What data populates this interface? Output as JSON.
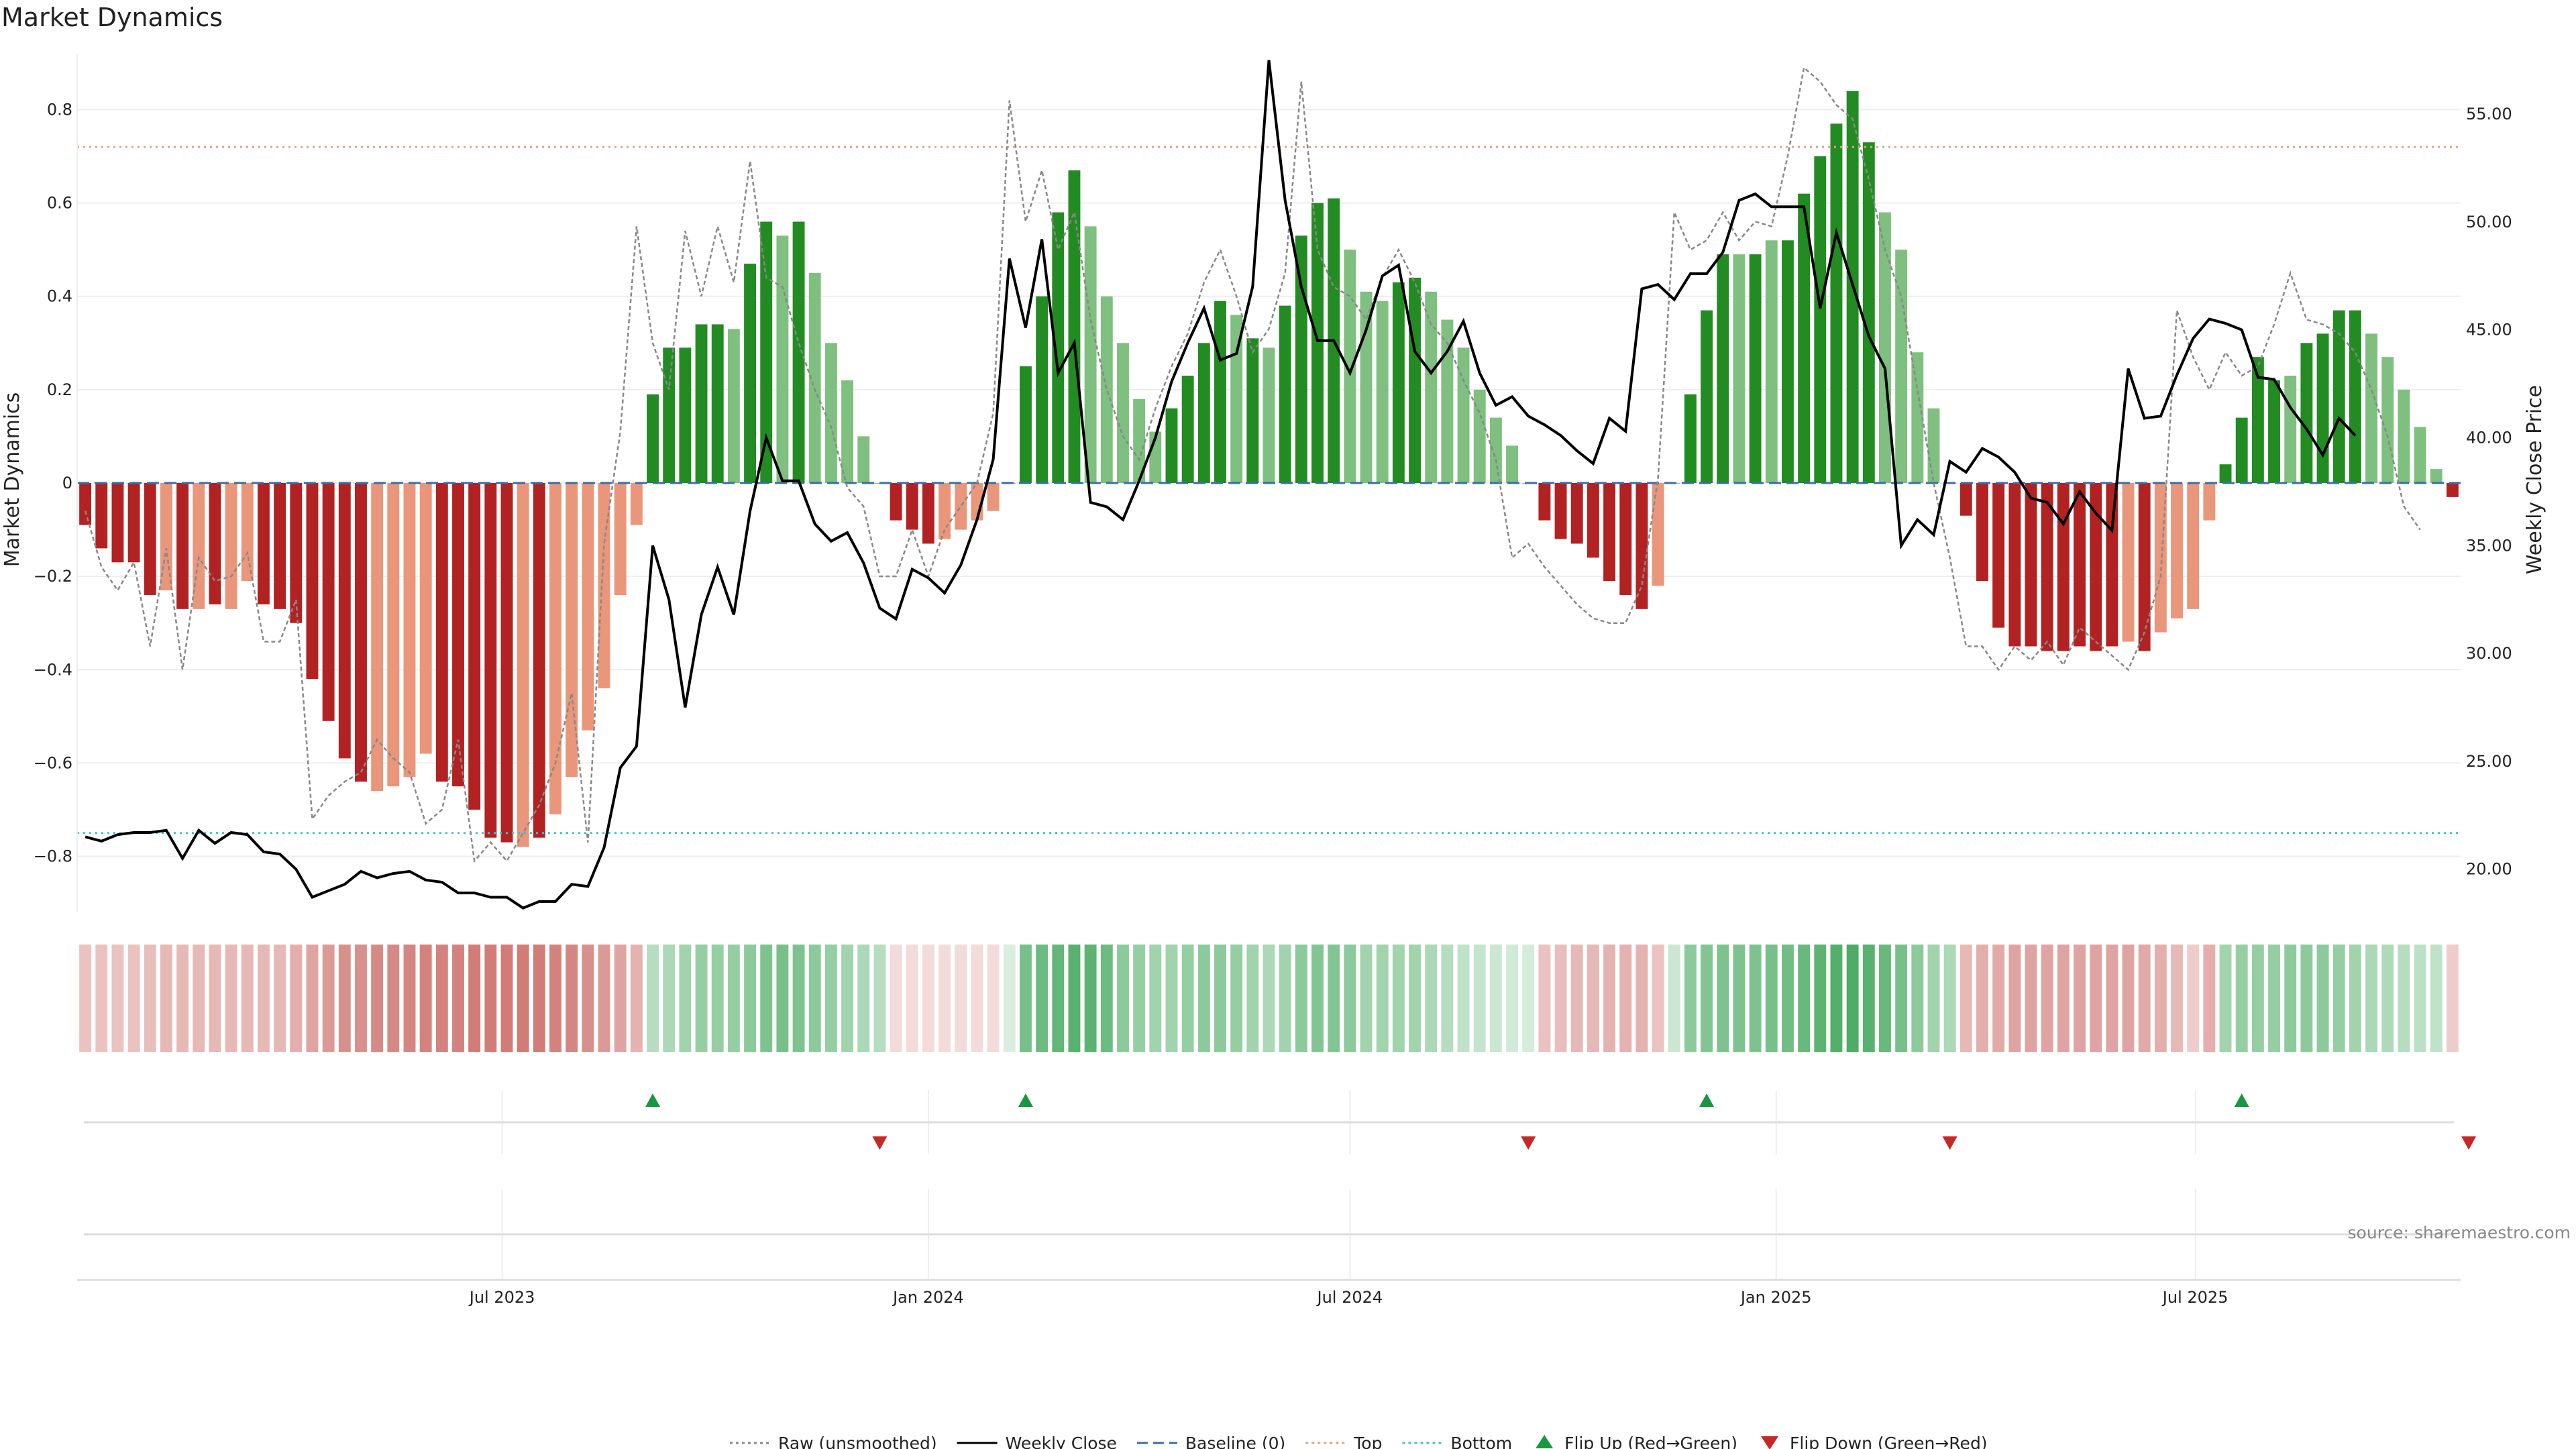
{
  "title": "Market Dynamics",
  "source": "source: sharemaestro.com",
  "axes": {
    "y_left_label": "Market Dynamics",
    "y_right_label": "Weekly Close Price",
    "y_left_ticks": [
      "0.8",
      "0.6",
      "0.4",
      "0.2",
      "0",
      "−0.2",
      "−0.4",
      "−0.6",
      "−0.8"
    ],
    "y_right_ticks": [
      "55.00",
      "50.00",
      "45.00",
      "40.00",
      "35.00",
      "30.00",
      "25.00",
      "20.00"
    ],
    "x_ticks": [
      "Jul 2023",
      "Jan 2024",
      "Jul 2024",
      "Jan 2025",
      "Jul 2025"
    ]
  },
  "legend": [
    {
      "label": "Raw (unsmoothed)",
      "kind": "dotted",
      "color": "#888888"
    },
    {
      "label": "Weekly Close",
      "kind": "solid",
      "color": "#000000"
    },
    {
      "label": "Baseline (0)",
      "kind": "dashed",
      "color": "#3a6ea5"
    },
    {
      "label": "Top",
      "kind": "dotted",
      "color": "#e8a07a"
    },
    {
      "label": "Bottom",
      "kind": "dotted",
      "color": "#3fbfcf"
    },
    {
      "label": "Flip Up (Red→Green)",
      "kind": "tri-up",
      "color": "#1a9641"
    },
    {
      "label": "Flip Down (Green→Red)",
      "kind": "tri-down",
      "color": "#c62828"
    }
  ],
  "colors": {
    "dark_red": "#b22222",
    "light_red": "#e9967a",
    "dark_green": "#228b22",
    "light_green": "#7fbf7f",
    "top_line": "#e8a07a",
    "bottom_line": "#3fbfcf",
    "baseline": "#3a6ea5"
  },
  "chart_data": {
    "type": "bar",
    "x_start": "2023-01-02",
    "x_step_days": 7,
    "top_level": 0.72,
    "bottom_level": -0.75,
    "y_left_range": [
      -0.92,
      0.92
    ],
    "y_right_range": [
      18.0,
      57.8
    ],
    "smoothed_values": [
      -0.09,
      -0.14,
      -0.17,
      -0.17,
      -0.24,
      -0.23,
      -0.27,
      -0.27,
      -0.26,
      -0.27,
      -0.21,
      -0.26,
      -0.27,
      -0.3,
      -0.42,
      -0.51,
      -0.59,
      -0.64,
      -0.66,
      -0.65,
      -0.63,
      -0.58,
      -0.64,
      -0.65,
      -0.7,
      -0.76,
      -0.77,
      -0.78,
      -0.76,
      -0.71,
      -0.63,
      -0.53,
      -0.44,
      -0.24,
      -0.09,
      0.19,
      0.29,
      0.29,
      0.34,
      0.34,
      0.33,
      0.47,
      0.56,
      0.53,
      0.56,
      0.45,
      0.3,
      0.22,
      0.1,
      0.0,
      -0.08,
      -0.1,
      -0.13,
      -0.12,
      -0.1,
      -0.08,
      -0.06,
      0.0,
      0.25,
      0.4,
      0.58,
      0.67,
      0.55,
      0.4,
      0.3,
      0.18,
      0.11,
      0.16,
      0.23,
      0.3,
      0.39,
      0.36,
      0.31,
      0.29,
      0.38,
      0.53,
      0.6,
      0.61,
      0.5,
      0.41,
      0.39,
      0.43,
      0.44,
      0.41,
      0.35,
      0.29,
      0.2,
      0.14,
      0.08,
      0.0,
      -0.08,
      -0.12,
      -0.13,
      -0.16,
      -0.21,
      -0.24,
      -0.27,
      -0.22,
      0.0,
      0.19,
      0.37,
      0.49,
      0.49,
      0.49,
      0.52,
      0.52,
      0.62,
      0.7,
      0.77,
      0.84,
      0.73,
      0.58,
      0.5,
      0.28,
      0.16,
      0.0,
      -0.07,
      -0.21,
      -0.31,
      -0.35,
      -0.35,
      -0.36,
      -0.36,
      -0.35,
      -0.36,
      -0.35,
      -0.34,
      -0.36,
      -0.32,
      -0.29,
      -0.27,
      -0.08,
      0.04,
      0.14,
      0.27,
      0.22,
      0.23,
      0.3,
      0.32,
      0.37,
      0.37,
      0.32,
      0.27,
      0.2,
      0.12,
      0.03,
      -0.03
    ],
    "shade": [
      "d",
      "d",
      "d",
      "d",
      "d",
      "l",
      "d",
      "l",
      "d",
      "l",
      "l",
      "d",
      "d",
      "d",
      "d",
      "d",
      "d",
      "d",
      "l",
      "l",
      "l",
      "l",
      "d",
      "d",
      "d",
      "d",
      "d",
      "l",
      "d",
      "l",
      "l",
      "l",
      "l",
      "l",
      "l",
      "d",
      "d",
      "d",
      "d",
      "d",
      "l",
      "d",
      "d",
      "l",
      "d",
      "l",
      "l",
      "l",
      "l",
      "l",
      "d",
      "d",
      "d",
      "l",
      "l",
      "l",
      "l",
      "l",
      "d",
      "d",
      "d",
      "d",
      "l",
      "l",
      "l",
      "l",
      "l",
      "d",
      "d",
      "d",
      "d",
      "l",
      "d",
      "l",
      "d",
      "d",
      "d",
      "d",
      "l",
      "l",
      "l",
      "d",
      "d",
      "l",
      "l",
      "l",
      "l",
      "l",
      "l",
      "l",
      "d",
      "d",
      "d",
      "d",
      "d",
      "d",
      "d",
      "l",
      "l",
      "d",
      "d",
      "d",
      "l",
      "d",
      "l",
      "d",
      "d",
      "d",
      "d",
      "d",
      "d",
      "l",
      "l",
      "l",
      "l",
      "l",
      "d",
      "d",
      "d",
      "d",
      "d",
      "d",
      "d",
      "d",
      "d",
      "d",
      "l",
      "d",
      "l",
      "l",
      "l",
      "l",
      "d",
      "d",
      "d",
      "d",
      "l",
      "d",
      "d",
      "d",
      "d",
      "l",
      "l",
      "l",
      "l",
      "l",
      "d"
    ],
    "raw_values": [
      -0.06,
      -0.18,
      -0.23,
      -0.17,
      -0.35,
      -0.14,
      -0.4,
      -0.16,
      -0.21,
      -0.2,
      -0.15,
      -0.34,
      -0.34,
      -0.25,
      -0.72,
      -0.67,
      -0.64,
      -0.62,
      -0.55,
      -0.59,
      -0.62,
      -0.73,
      -0.7,
      -0.55,
      -0.81,
      -0.77,
      -0.81,
      -0.75,
      -0.69,
      -0.6,
      -0.45,
      -0.77,
      -0.13,
      0.11,
      0.55,
      0.3,
      0.2,
      0.54,
      0.4,
      0.55,
      0.43,
      0.69,
      0.44,
      0.42,
      0.3,
      0.2,
      0.12,
      -0.01,
      -0.05,
      -0.2,
      -0.2,
      -0.1,
      -0.2,
      -0.1,
      -0.05,
      0.0,
      0.15,
      0.82,
      0.56,
      0.67,
      0.5,
      0.58,
      0.35,
      0.2,
      0.1,
      0.05,
      0.16,
      0.25,
      0.32,
      0.43,
      0.5,
      0.4,
      0.28,
      0.33,
      0.45,
      0.86,
      0.5,
      0.42,
      0.4,
      0.35,
      0.44,
      0.5,
      0.43,
      0.34,
      0.3,
      0.22,
      0.15,
      0.05,
      -0.16,
      -0.13,
      -0.18,
      -0.22,
      -0.26,
      -0.29,
      -0.3,
      -0.3,
      -0.22,
      0.01,
      0.58,
      0.5,
      0.52,
      0.58,
      0.52,
      0.56,
      0.55,
      0.7,
      0.89,
      0.86,
      0.81,
      0.78,
      0.65,
      0.5,
      0.4,
      0.2,
      0.0,
      -0.16,
      -0.35,
      -0.35,
      -0.4,
      -0.35,
      -0.38,
      -0.34,
      -0.39,
      -0.31,
      -0.34,
      -0.37,
      -0.4,
      -0.32,
      -0.2,
      0.37,
      0.27,
      0.2,
      0.28,
      0.23,
      0.25,
      0.34,
      0.45,
      0.35,
      0.34,
      0.32,
      0.28,
      0.2,
      0.1,
      -0.05,
      -0.1
    ],
    "weekly_close": [
      21.5,
      21.3,
      21.6,
      21.7,
      21.7,
      21.8,
      20.5,
      21.8,
      21.2,
      21.7,
      21.6,
      20.8,
      20.7,
      20.0,
      18.7,
      19.0,
      19.3,
      19.9,
      19.6,
      19.8,
      19.9,
      19.5,
      19.4,
      18.9,
      18.9,
      18.7,
      18.7,
      18.2,
      18.5,
      18.5,
      19.3,
      19.2,
      21.0,
      24.7,
      25.7,
      35.0,
      32.5,
      27.5,
      31.8,
      34.0,
      31.8,
      36.6,
      40.0,
      38.0,
      38.0,
      36.0,
      35.2,
      35.6,
      34.2,
      32.1,
      31.6,
      33.9,
      33.5,
      32.8,
      34.1,
      36.2,
      39.0,
      48.3,
      45.1,
      49.2,
      43.0,
      44.4,
      37.0,
      36.8,
      36.2,
      38.0,
      40.0,
      42.6,
      44.4,
      46.0,
      43.6,
      43.9,
      47.0,
      57.5,
      51.0,
      47.0,
      44.5,
      44.5,
      43.0,
      45.0,
      47.5,
      48.0,
      44.0,
      43.0,
      44.0,
      45.4,
      43.0,
      41.5,
      41.9,
      41.0,
      40.6,
      40.1,
      39.4,
      38.8,
      40.9,
      40.3,
      46.9,
      47.1,
      46.4,
      47.6,
      47.6,
      48.6,
      51.0,
      51.3,
      50.7,
      50.7,
      50.7,
      46.0,
      49.5,
      47.1,
      44.7,
      43.2,
      35.0,
      36.2,
      35.5,
      38.9,
      38.4,
      39.5,
      39.1,
      38.4,
      37.2,
      37.0,
      36.0,
      37.5,
      36.5,
      35.7,
      43.2,
      40.9,
      41.0,
      42.9,
      44.6,
      45.5,
      45.3,
      45.0,
      42.8,
      42.7,
      41.4,
      40.4,
      39.2,
      40.9,
      40.1
    ],
    "flip_up_index": [
      35,
      58,
      100,
      133
    ],
    "flip_down_index": [
      49,
      89,
      115,
      147
    ],
    "strip_alpha": [
      0.3,
      0.3,
      0.3,
      0.3,
      0.32,
      0.35,
      0.35,
      0.35,
      0.35,
      0.35,
      0.35,
      0.35,
      0.35,
      0.4,
      0.45,
      0.5,
      0.55,
      0.55,
      0.58,
      0.58,
      0.6,
      0.62,
      0.62,
      0.62,
      0.65,
      0.65,
      0.65,
      0.65,
      0.65,
      0.62,
      0.6,
      0.55,
      0.5,
      0.45,
      0.38,
      0.35,
      0.4,
      0.45,
      0.5,
      0.5,
      0.5,
      0.55,
      0.62,
      0.65,
      0.62,
      0.55,
      0.5,
      0.45,
      0.4,
      0.35,
      0.18,
      0.18,
      0.18,
      0.18,
      0.18,
      0.18,
      0.18,
      0.18,
      0.65,
      0.7,
      0.75,
      0.8,
      0.78,
      0.7,
      0.55,
      0.5,
      0.45,
      0.45,
      0.5,
      0.55,
      0.55,
      0.5,
      0.45,
      0.4,
      0.45,
      0.55,
      0.6,
      0.6,
      0.55,
      0.45,
      0.45,
      0.45,
      0.45,
      0.4,
      0.35,
      0.3,
      0.28,
      0.25,
      0.22,
      0.2,
      0.3,
      0.32,
      0.35,
      0.35,
      0.38,
      0.38,
      0.38,
      0.3,
      0.25,
      0.55,
      0.6,
      0.62,
      0.62,
      0.62,
      0.65,
      0.68,
      0.72,
      0.78,
      0.82,
      0.85,
      0.8,
      0.72,
      0.65,
      0.55,
      0.45,
      0.4,
      0.35,
      0.4,
      0.42,
      0.45,
      0.45,
      0.45,
      0.45,
      0.45,
      0.45,
      0.45,
      0.45,
      0.42,
      0.4,
      0.35,
      0.25,
      0.4,
      0.45,
      0.5,
      0.5,
      0.5,
      0.55,
      0.55,
      0.55,
      0.5,
      0.45,
      0.4,
      0.38,
      0.35,
      0.32,
      0.3,
      0.25
    ]
  }
}
